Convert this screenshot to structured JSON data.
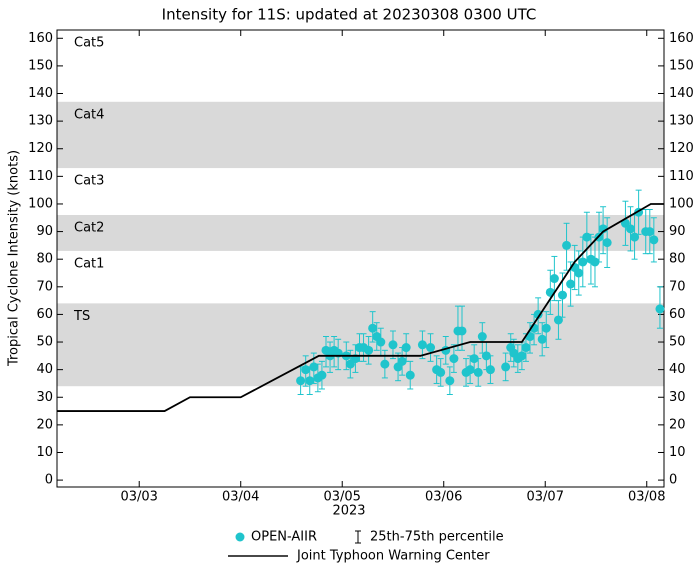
{
  "chart_data": {
    "type": "scatter",
    "title": "Intensity for 11S: updated at 20230308 0300 UTC",
    "xlabel": "2023",
    "ylabel": "Tropical Cyclone Intensity (knots)",
    "xlim": [
      2.19,
      8.17
    ],
    "xticks": [
      {
        "value": 3,
        "label": "03/03"
      },
      {
        "value": 4,
        "label": "03/04"
      },
      {
        "value": 5,
        "label": "03/05"
      },
      {
        "value": 6,
        "label": "03/06"
      },
      {
        "value": 7,
        "label": "03/07"
      },
      {
        "value": 8,
        "label": "03/08"
      }
    ],
    "ylim": [
      -2.5,
      163
    ],
    "yticks": [
      0,
      10,
      20,
      30,
      40,
      50,
      60,
      70,
      80,
      90,
      100,
      110,
      120,
      130,
      140,
      150,
      160
    ],
    "y2lim": [
      -2.5,
      163
    ],
    "y2ticks": [
      0,
      10,
      20,
      30,
      40,
      50,
      60,
      70,
      80,
      90,
      100,
      110,
      120,
      130,
      140,
      150,
      160
    ],
    "bands": [
      {
        "label": "TS",
        "min": 34,
        "max": 64,
        "shaded": true
      },
      {
        "label": "Cat1",
        "min": 64,
        "max": 83,
        "shaded": false
      },
      {
        "label": "Cat2",
        "min": 83,
        "max": 96,
        "shaded": true
      },
      {
        "label": "Cat3",
        "min": 96,
        "max": 113,
        "shaded": false
      },
      {
        "label": "Cat4",
        "min": 113,
        "max": 137,
        "shaded": true
      },
      {
        "label": "Cat5",
        "min": 137,
        "max": 163,
        "shaded": false
      }
    ],
    "band_color": "#d9d9d9",
    "error_label": "25th-75th percentile",
    "series": [
      {
        "name": "OPEN-AIIR",
        "color": "#1fc4cc",
        "x": [
          4.59,
          4.64,
          4.68,
          4.72,
          4.76,
          4.8,
          4.84,
          4.88,
          4.92,
          4.96,
          5.04,
          5.08,
          5.13,
          5.17,
          5.21,
          5.26,
          5.3,
          5.34,
          5.38,
          5.42,
          5.5,
          5.55,
          5.59,
          5.63,
          5.67,
          5.79,
          5.87,
          5.93,
          5.97,
          6.02,
          6.06,
          6.1,
          6.14,
          6.18,
          6.22,
          6.26,
          6.3,
          6.34,
          6.38,
          6.42,
          6.46,
          6.61,
          6.66,
          6.69,
          6.73,
          6.77,
          6.81,
          6.85,
          6.89,
          6.93,
          6.97,
          7.01,
          7.05,
          7.09,
          7.13,
          7.17,
          7.21,
          7.25,
          7.29,
          7.33,
          7.37,
          7.41,
          7.45,
          7.49,
          7.53,
          7.57,
          7.61,
          7.79,
          7.84,
          7.88,
          7.92,
          7.99,
          8.03,
          8.07,
          8.13
        ],
        "values": [
          36,
          40,
          36,
          41,
          37,
          38,
          47,
          45,
          47,
          46,
          45,
          42,
          44,
          48,
          48,
          47,
          55,
          52,
          50,
          42,
          49,
          41,
          43,
          48,
          38,
          49,
          48,
          40,
          39,
          47,
          36,
          44,
          54,
          54,
          39,
          40,
          44,
          39,
          52,
          45,
          40,
          41,
          48,
          46,
          44,
          45,
          48,
          52,
          55,
          60,
          51,
          55,
          68,
          73,
          58,
          67,
          85,
          71,
          77,
          75,
          79,
          88,
          80,
          79,
          88,
          91,
          86,
          93,
          91,
          88,
          97,
          90,
          90,
          87,
          62
        ],
        "low": [
          31,
          34,
          31,
          35,
          32,
          33,
          41,
          39,
          41,
          40,
          40,
          37,
          39,
          43,
          43,
          42,
          50,
          47,
          45,
          37,
          44,
          36,
          38,
          43,
          33,
          44,
          43,
          35,
          34,
          42,
          31,
          39,
          47,
          47,
          34,
          35,
          39,
          34,
          46,
          40,
          35,
          36,
          43,
          41,
          39,
          40,
          43,
          46,
          49,
          53,
          45,
          48,
          60,
          65,
          51,
          59,
          76,
          63,
          69,
          67,
          70,
          79,
          71,
          70,
          79,
          82,
          77,
          85,
          83,
          80,
          89,
          82,
          82,
          79,
          55
        ],
        "high": [
          41,
          45,
          41,
          46,
          42,
          43,
          52,
          50,
          52,
          51,
          50,
          47,
          49,
          53,
          53,
          52,
          61,
          57,
          55,
          47,
          54,
          46,
          48,
          53,
          43,
          54,
          53,
          45,
          44,
          52,
          41,
          49,
          63,
          63,
          44,
          45,
          49,
          44,
          57,
          50,
          45,
          46,
          53,
          51,
          49,
          50,
          53,
          57,
          60,
          66,
          57,
          61,
          76,
          81,
          65,
          75,
          93,
          79,
          85,
          83,
          88,
          97,
          89,
          88,
          97,
          99,
          95,
          101,
          99,
          96,
          105,
          98,
          98,
          95,
          70
        ]
      },
      {
        "name": "Joint Typhoon Warning Center",
        "color": "#000000",
        "type": "line",
        "x": [
          2.19,
          3.25,
          3.5,
          4.0,
          4.77,
          5.77,
          6.26,
          6.77,
          7.29,
          7.57,
          8.04,
          8.17
        ],
        "values": [
          25,
          25,
          30,
          30,
          45,
          45,
          50,
          50,
          79,
          90,
          100,
          100
        ]
      }
    ]
  }
}
